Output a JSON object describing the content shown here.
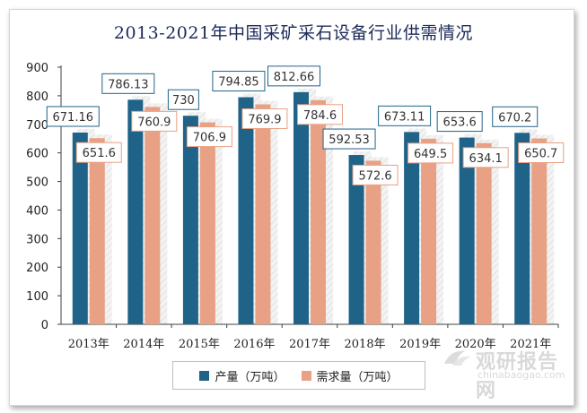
{
  "chart_data": {
    "type": "bar",
    "title": "2013-2021年中国采矿采石设备行业供需情况",
    "categories": [
      "2013年",
      "2014年",
      "2015年",
      "2016年",
      "2017年",
      "2018年",
      "2019年",
      "2020年",
      "2021年"
    ],
    "series": [
      {
        "name": "产量（万吨）",
        "color": "#1f6388",
        "values": [
          671.16,
          786.13,
          730,
          794.85,
          812.66,
          592.53,
          673.11,
          653.6,
          670.2
        ],
        "labels": [
          "671.16",
          "786.13",
          "730",
          "794.85",
          "812.66",
          "592.53",
          "673.11",
          "653.6",
          "670.2"
        ]
      },
      {
        "name": "需求量（万吨）",
        "color": "#e8a184",
        "values": [
          651.6,
          760.9,
          706.9,
          769.9,
          784.6,
          572.6,
          649.5,
          634.1,
          650.7
        ],
        "labels": [
          "651.6",
          "760.9",
          "706.9",
          "769.9",
          "784.6",
          "572.6",
          "649.5",
          "634.1",
          "650.7"
        ]
      }
    ],
    "ylim": [
      0,
      900
    ],
    "yticks": [
      0,
      100,
      200,
      300,
      400,
      500,
      600,
      700,
      800,
      900
    ],
    "legend_position": "bottom-center",
    "grid": false
  },
  "watermark": {
    "text_cn": "观研报告网",
    "text_en": "chinabaogao.com"
  }
}
